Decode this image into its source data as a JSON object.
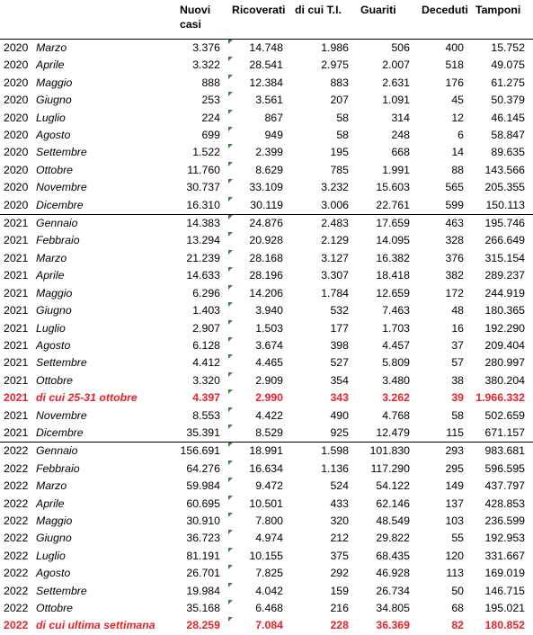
{
  "headers": {
    "nuovi_casi": "Nuovi casi",
    "ricoverati": "Ricoverati",
    "terapia_intensiva": "di cui T.I.",
    "guariti": "Guariti",
    "deceduti": "Deceduti",
    "tamponi": "Tamponi"
  },
  "colors": {
    "highlight": "#e8212a",
    "tick": "#2e8b2e"
  },
  "rows": [
    {
      "year": "2020",
      "month": "Marzo",
      "nuovi": "3.376",
      "ric": "14.748",
      "ti": "1.986",
      "gua": "506",
      "dec": "400",
      "tam": "15.752"
    },
    {
      "year": "2020",
      "month": "Aprile",
      "nuovi": "3.322",
      "ric": "28.541",
      "ti": "2.975",
      "gua": "2.007",
      "dec": "518",
      "tam": "49.075"
    },
    {
      "year": "2020",
      "month": "Maggio",
      "nuovi": "888",
      "ric": "12.384",
      "ti": "883",
      "gua": "2.631",
      "dec": "176",
      "tam": "61.275"
    },
    {
      "year": "2020",
      "month": "Giugno",
      "nuovi": "253",
      "ric": "3.561",
      "ti": "207",
      "gua": "1.091",
      "dec": "45",
      "tam": "50.379"
    },
    {
      "year": "2020",
      "month": "Luglio",
      "nuovi": "224",
      "ric": "867",
      "ti": "58",
      "gua": "314",
      "dec": "12",
      "tam": "46.145"
    },
    {
      "year": "2020",
      "month": "Agosto",
      "nuovi": "699",
      "ric": "949",
      "ti": "58",
      "gua": "248",
      "dec": "6",
      "tam": "58.847"
    },
    {
      "year": "2020",
      "month": "Settembre",
      "nuovi": "1.522",
      "ric": "2.399",
      "ti": "195",
      "gua": "668",
      "dec": "14",
      "tam": "89.635"
    },
    {
      "year": "2020",
      "month": "Ottobre",
      "nuovi": "11.760",
      "ric": "8.629",
      "ti": "785",
      "gua": "1.991",
      "dec": "88",
      "tam": "143.566"
    },
    {
      "year": "2020",
      "month": "Novembre",
      "nuovi": "30.737",
      "ric": "33.109",
      "ti": "3.232",
      "gua": "15.603",
      "dec": "565",
      "tam": "205.355"
    },
    {
      "year": "2020",
      "month": "Dicembre",
      "nuovi": "16.310",
      "ric": "30.119",
      "ti": "3.006",
      "gua": "22.761",
      "dec": "599",
      "tam": "150.113"
    },
    {
      "year": "2021",
      "month": "Gennaio",
      "nuovi": "14.383",
      "ric": "24.876",
      "ti": "2.483",
      "gua": "17.659",
      "dec": "463",
      "tam": "195.746",
      "sep": true
    },
    {
      "year": "2021",
      "month": "Febbraio",
      "nuovi": "13.294",
      "ric": "20.928",
      "ti": "2.129",
      "gua": "14.095",
      "dec": "328",
      "tam": "266.649"
    },
    {
      "year": "2021",
      "month": "Marzo",
      "nuovi": "21.239",
      "ric": "28.168",
      "ti": "3.127",
      "gua": "16.382",
      "dec": "376",
      "tam": "315.154"
    },
    {
      "year": "2021",
      "month": "Aprile",
      "nuovi": "14.633",
      "ric": "28.196",
      "ti": "3.307",
      "gua": "18.418",
      "dec": "382",
      "tam": "289.237"
    },
    {
      "year": "2021",
      "month": "Maggio",
      "nuovi": "6.296",
      "ric": "14.206",
      "ti": "1.784",
      "gua": "12.659",
      "dec": "172",
      "tam": "244.919"
    },
    {
      "year": "2021",
      "month": "Giugno",
      "nuovi": "1.403",
      "ric": "3.940",
      "ti": "532",
      "gua": "7.463",
      "dec": "48",
      "tam": "180.365"
    },
    {
      "year": "2021",
      "month": "Luglio",
      "nuovi": "2.907",
      "ric": "1.503",
      "ti": "177",
      "gua": "1.703",
      "dec": "16",
      "tam": "192.290"
    },
    {
      "year": "2021",
      "month": "Agosto",
      "nuovi": "6.128",
      "ric": "3.674",
      "ti": "398",
      "gua": "4.457",
      "dec": "37",
      "tam": "209.404"
    },
    {
      "year": "2021",
      "month": "Settembre",
      "nuovi": "4.412",
      "ric": "4.465",
      "ti": "527",
      "gua": "5.809",
      "dec": "57",
      "tam": "280.997"
    },
    {
      "year": "2021",
      "month": "Ottobre",
      "nuovi": "3.320",
      "ric": "2.909",
      "ti": "354",
      "gua": "3.480",
      "dec": "38",
      "tam": "380.204"
    },
    {
      "year": "2021",
      "month": "di cui 25-31 ottobre",
      "nuovi": "4.397",
      "ric": "2.990",
      "ti": "343",
      "gua": "3.262",
      "dec": "39",
      "tam": "1.966.332",
      "highlight": true
    },
    {
      "year": "2021",
      "month": "Novembre",
      "nuovi": "8.553",
      "ric": "4.422",
      "ti": "490",
      "gua": "4.768",
      "dec": "58",
      "tam": "502.659"
    },
    {
      "year": "2021",
      "month": "Dicembre",
      "nuovi": "35.391",
      "ric": "8.529",
      "ti": "925",
      "gua": "12.479",
      "dec": "115",
      "tam": "671.157"
    },
    {
      "year": "2022",
      "month": "Gennaio",
      "nuovi": "156.691",
      "ric": "18.991",
      "ti": "1.598",
      "gua": "101.830",
      "dec": "293",
      "tam": "983.681",
      "sep": true
    },
    {
      "year": "2022",
      "month": "Febbraio",
      "nuovi": "64.276",
      "ric": "16.634",
      "ti": "1.136",
      "gua": "117.290",
      "dec": "295",
      "tam": "596.595"
    },
    {
      "year": "2022",
      "month": "Marzo",
      "nuovi": "59.984",
      "ric": "9.472",
      "ti": "524",
      "gua": "54.122",
      "dec": "149",
      "tam": "437.797"
    },
    {
      "year": "2022",
      "month": "Aprile",
      "nuovi": "60.695",
      "ric": "10.501",
      "ti": "433",
      "gua": "62.146",
      "dec": "137",
      "tam": "428.853"
    },
    {
      "year": "2022",
      "month": "Maggio",
      "nuovi": "30.910",
      "ric": "7.800",
      "ti": "320",
      "gua": "48.549",
      "dec": "103",
      "tam": "236.599"
    },
    {
      "year": "2022",
      "month": "Giugno",
      "nuovi": "36.723",
      "ric": "4.974",
      "ti": "212",
      "gua": "29.822",
      "dec": "55",
      "tam": "192.953"
    },
    {
      "year": "2022",
      "month": "Luglio",
      "nuovi": "81.191",
      "ric": "10.155",
      "ti": "375",
      "gua": "68.435",
      "dec": "120",
      "tam": "331.667"
    },
    {
      "year": "2022",
      "month": "Agosto",
      "nuovi": "26.701",
      "ric": "7.825",
      "ti": "292",
      "gua": "46.928",
      "dec": "113",
      "tam": "169.019"
    },
    {
      "year": "2022",
      "month": "Settembre",
      "nuovi": "19.984",
      "ric": "4.042",
      "ti": "159",
      "gua": "26.734",
      "dec": "50",
      "tam": "146.715"
    },
    {
      "year": "2022",
      "month": "Ottobre",
      "nuovi": "35.168",
      "ric": "6.468",
      "ti": "216",
      "gua": "34.805",
      "dec": "68",
      "tam": "195.021"
    },
    {
      "year": "2022",
      "month": "di cui ultima settimana",
      "nuovi": "28.259",
      "ric": "7.084",
      "ti": "228",
      "gua": "36.369",
      "dec": "82",
      "tam": "180.852",
      "highlight": true
    }
  ]
}
